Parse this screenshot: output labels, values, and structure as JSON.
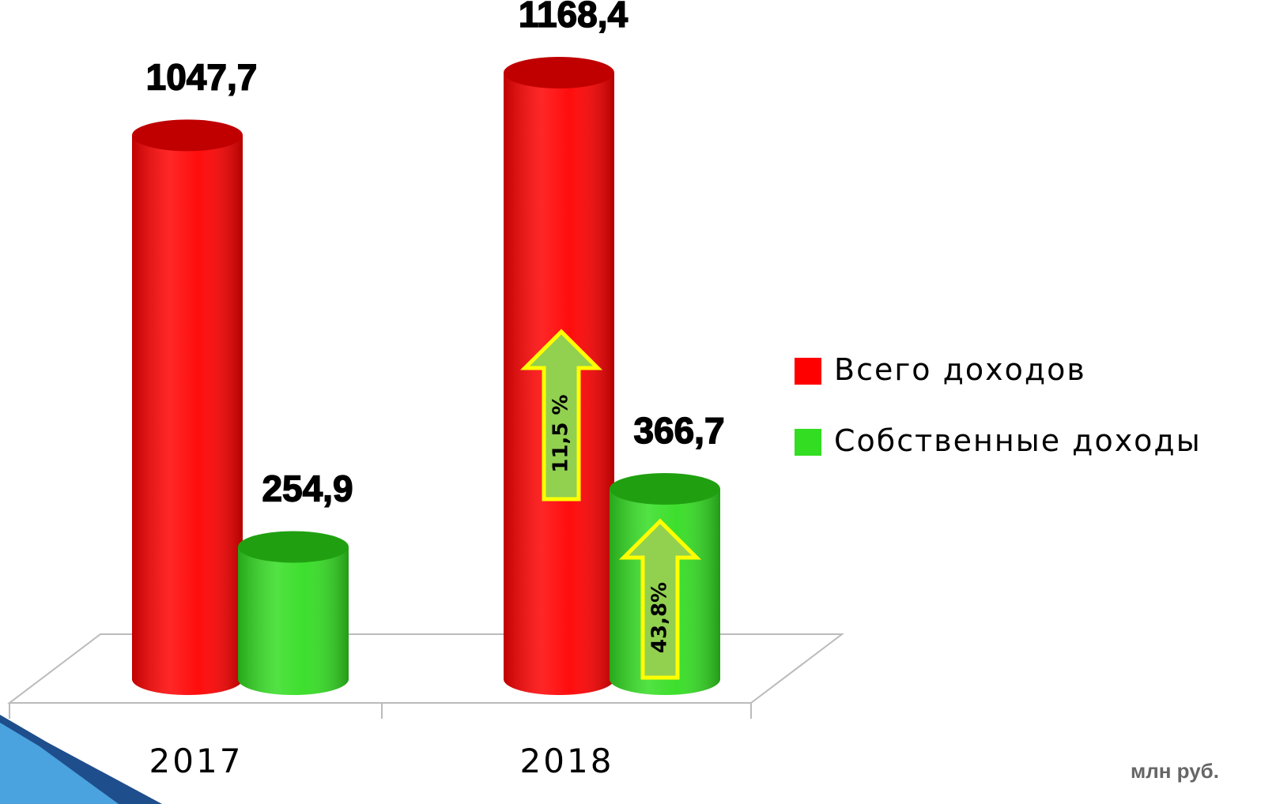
{
  "chart_data": {
    "type": "bar",
    "categories": [
      "2017",
      "2018"
    ],
    "series": [
      {
        "name": "Всего доходов",
        "color": "#ff0000",
        "values": [
          1047.7,
          1168.4
        ],
        "value_labels": [
          "1047,7",
          "1168,4"
        ]
      },
      {
        "name": "Собственные доходы",
        "color": "#33dd22",
        "values": [
          254.9,
          366.7
        ],
        "value_labels": [
          "254,9",
          "366,7"
        ]
      }
    ],
    "annotations": [
      "11,5 %",
      "43,8%"
    ],
    "unit": "млн руб.",
    "legend": "right"
  }
}
